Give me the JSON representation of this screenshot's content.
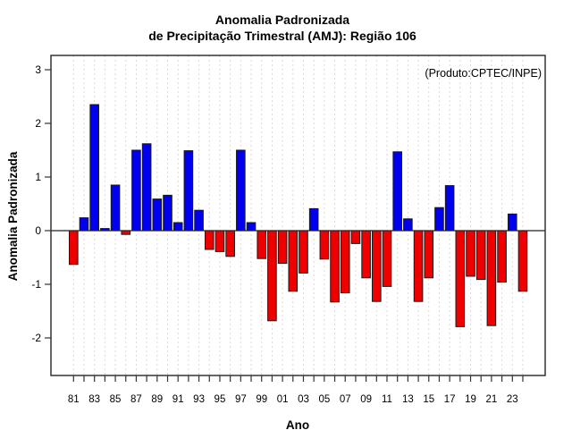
{
  "chart_data": {
    "type": "bar",
    "title_line1": "Anomalia Padronizada",
    "title_line2": "de Precipitação Trimestral (AMJ): Região 106",
    "annotation": "(Produto:CPTEC/INPE)",
    "xlabel": "Ano",
    "ylabel": "Anomalia Padronizada",
    "ylim": [
      -2.7,
      3.3
    ],
    "y_ticks": [
      3,
      2,
      1,
      0,
      -1,
      -2
    ],
    "x_tick_labels": [
      "81",
      "83",
      "85",
      "87",
      "89",
      "91",
      "93",
      "95",
      "97",
      "99",
      "01",
      "03",
      "05",
      "07",
      "09",
      "11",
      "13",
      "15",
      "17",
      "19",
      "21",
      "23"
    ],
    "grid": "vertical-dashed",
    "legend": "none",
    "years": [
      1981,
      1982,
      1983,
      1984,
      1985,
      1986,
      1987,
      1988,
      1989,
      1990,
      1991,
      1992,
      1993,
      1994,
      1995,
      1996,
      1997,
      1998,
      1999,
      2000,
      2001,
      2002,
      2003,
      2004,
      2005,
      2006,
      2007,
      2008,
      2009,
      2010,
      2011,
      2012,
      2013,
      2014,
      2015,
      2016,
      2017,
      2018,
      2019,
      2020,
      2021,
      2022,
      2023,
      2024
    ],
    "values": [
      -0.63,
      0.24,
      2.35,
      0.04,
      0.85,
      -0.07,
      1.5,
      1.62,
      0.59,
      0.66,
      0.15,
      1.49,
      0.38,
      -0.35,
      -0.39,
      -0.48,
      1.5,
      0.15,
      -0.52,
      -1.68,
      -0.61,
      -1.13,
      -0.79,
      0.41,
      -0.53,
      -1.33,
      -1.16,
      -0.24,
      -0.88,
      -1.32,
      -1.04,
      1.47,
      0.22,
      -1.32,
      -0.88,
      0.43,
      0.84,
      -1.79,
      -0.85,
      -0.91,
      -1.77,
      -0.96,
      0.31,
      -1.13
    ],
    "colors": {
      "positive": "#0000ee",
      "negative": "#ee0000",
      "bar_border": "#1a1a1a",
      "grid": "#d9d9d9",
      "axis": "#333333",
      "zero_line": "#222222",
      "annotation": "#8a8a8a",
      "background": "#ffffff"
    }
  }
}
